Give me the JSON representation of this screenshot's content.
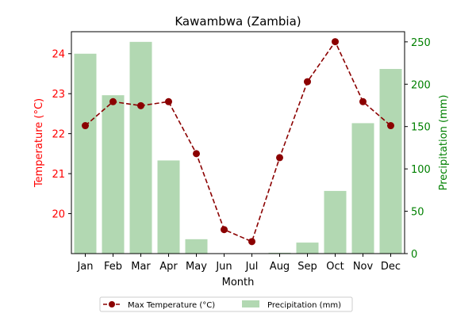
{
  "chart_data": {
    "type": "bar+line",
    "title": "Kawambwa (Zambia)",
    "xlabel": "Month",
    "categories": [
      "Jan",
      "Feb",
      "Mar",
      "Apr",
      "May",
      "Jun",
      "Jul",
      "Aug",
      "Sep",
      "Oct",
      "Nov",
      "Dec"
    ],
    "y_left": {
      "label": "Temperature (°C)",
      "color": "#ff0000",
      "range": [
        19.0,
        24.55
      ],
      "ticks": [
        20,
        21,
        22,
        23,
        24
      ]
    },
    "y_right": {
      "label": "Precipitation (mm)",
      "color": "#008000",
      "range": [
        0,
        262
      ],
      "ticks": [
        0,
        50,
        100,
        150,
        200,
        250
      ]
    },
    "series": [
      {
        "name": "Max Temperature (°C)",
        "type": "line",
        "axis": "left",
        "color": "#8b0000",
        "values": [
          22.2,
          22.8,
          22.7,
          22.8,
          21.5,
          19.6,
          19.3,
          21.4,
          23.3,
          24.3,
          22.8,
          22.2
        ]
      },
      {
        "name": "Precipitation (mm)",
        "type": "bar",
        "axis": "right",
        "color": "#b2d8b2",
        "values": [
          236,
          187,
          250,
          110,
          17,
          0,
          0,
          1,
          13,
          74,
          154,
          218
        ]
      }
    ],
    "legend_position": "bottom-center",
    "grid": false
  }
}
